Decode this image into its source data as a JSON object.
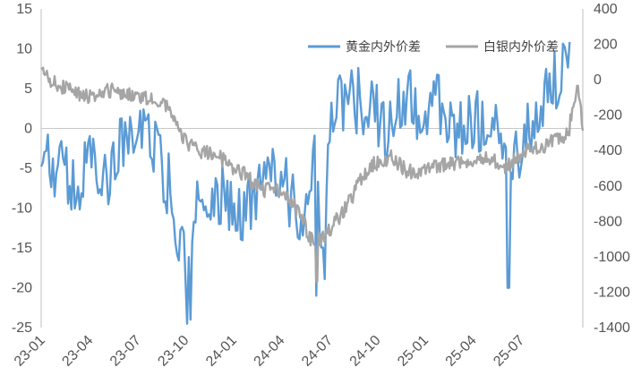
{
  "chart_data": {
    "type": "line",
    "x": [
      "23-01",
      "23-04",
      "23-07",
      "23-10",
      "24-01",
      "24-04",
      "24-07",
      "24-10",
      "25-01",
      "25-04",
      "25-07"
    ],
    "y_left": {
      "ticks": [
        15,
        10,
        5,
        0,
        -5,
        -10,
        -15,
        -20,
        -25
      ],
      "tick_labels": [
        "15",
        "10",
        "5",
        "0",
        "-5",
        "-10",
        "-15",
        "-20",
        "-25"
      ],
      "ylim": [
        -25,
        15
      ]
    },
    "y_right": {
      "ticks": [
        400,
        200,
        0,
        -200,
        -400,
        -600,
        -800,
        -1000,
        -1200,
        -1400
      ],
      "tick_labels": [
        "400",
        "200",
        "0",
        "-200",
        "-400",
        "-600",
        "-800",
        "-1000",
        "-1200",
        "-1400"
      ],
      "ylim": [
        -1400,
        400
      ]
    },
    "legend_placement": "top-right",
    "series": [
      {
        "name": "黄金内外价差",
        "axis": "left",
        "color": "#5b9bd5",
        "anchors": [
          [
            0,
            -3
          ],
          [
            0.2,
            -4
          ],
          [
            0.5,
            -6
          ],
          [
            0.8,
            -9
          ],
          [
            1.0,
            -3
          ],
          [
            1.3,
            -7
          ],
          [
            1.7,
            -2
          ],
          [
            2.0,
            0
          ],
          [
            2.4,
            -3
          ],
          [
            2.7,
            -8
          ],
          [
            2.95,
            -15
          ],
          [
            3.05,
            -22
          ],
          [
            3.25,
            -10
          ],
          [
            3.6,
            -7
          ],
          [
            4.0,
            -11
          ],
          [
            4.5,
            -9
          ],
          [
            5.0,
            -5
          ],
          [
            5.4,
            -12
          ],
          [
            5.7,
            -2
          ],
          [
            5.9,
            -19
          ],
          [
            6.0,
            2
          ],
          [
            6.4,
            4
          ],
          [
            6.8,
            3
          ],
          [
            7.2,
            0
          ],
          [
            7.6,
            4
          ],
          [
            8.0,
            1
          ],
          [
            8.3,
            3
          ],
          [
            8.7,
            0
          ],
          [
            9.0,
            1
          ],
          [
            9.3,
            0
          ],
          [
            9.6,
            -2
          ],
          [
            9.75,
            -6
          ],
          [
            9.95,
            -4
          ],
          [
            10.2,
            0
          ],
          [
            10.6,
            4
          ],
          [
            11.0,
            10
          ],
          [
            11.05,
            13
          ]
        ],
        "dips": [
          [
            3.05,
            -24.5
          ],
          [
            3.12,
            -24
          ],
          [
            5.75,
            -21
          ],
          [
            9.75,
            -20
          ]
        ]
      },
      {
        "name": "白银内外价差",
        "axis": "right",
        "color": "#a5a5a5",
        "anchors": [
          [
            0,
            40
          ],
          [
            0.2,
            0
          ],
          [
            0.5,
            -50
          ],
          [
            1.0,
            -100
          ],
          [
            1.5,
            -50
          ],
          [
            2.0,
            -100
          ],
          [
            2.5,
            -120
          ],
          [
            2.8,
            -200
          ],
          [
            3.0,
            -350
          ],
          [
            3.3,
            -400
          ],
          [
            3.8,
            -450
          ],
          [
            4.3,
            -550
          ],
          [
            4.6,
            -630
          ],
          [
            4.9,
            -620
          ],
          [
            5.2,
            -680
          ],
          [
            5.4,
            -760
          ],
          [
            5.7,
            -940
          ],
          [
            6.0,
            -850
          ],
          [
            6.3,
            -750
          ],
          [
            6.6,
            -600
          ],
          [
            6.9,
            -480
          ],
          [
            7.3,
            -430
          ],
          [
            7.6,
            -510
          ],
          [
            8.0,
            -520
          ],
          [
            8.4,
            -480
          ],
          [
            8.9,
            -450
          ],
          [
            9.3,
            -430
          ],
          [
            9.7,
            -500
          ],
          [
            10.1,
            -400
          ],
          [
            10.6,
            -360
          ],
          [
            11.0,
            -300
          ],
          [
            11.1,
            -150
          ],
          [
            11.2,
            -50
          ],
          [
            11.3,
            -260
          ]
        ],
        "dips": [
          [
            5.75,
            -1140
          ]
        ]
      }
    ]
  }
}
